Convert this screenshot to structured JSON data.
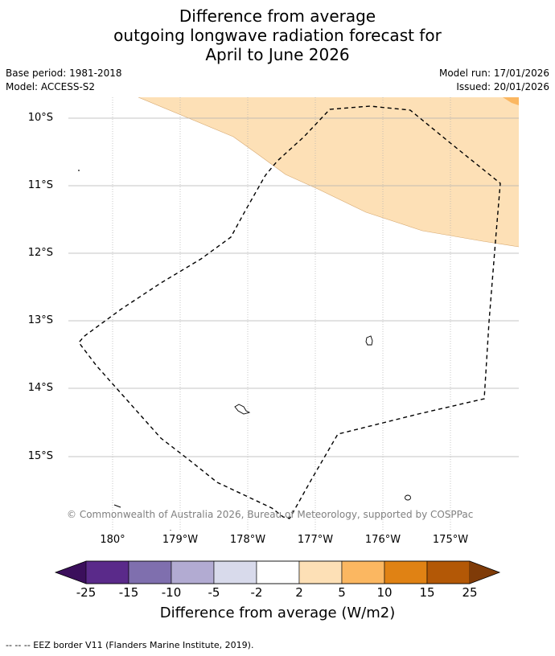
{
  "title": {
    "line1": "Difference from average",
    "line2": "outgoing longwave radiation forecast for",
    "line3": "April to June 2026"
  },
  "meta": {
    "base_period": "Base period: 1981-2018",
    "model": "Model: ACCESS-S2",
    "model_run": "Model run: 17/01/2026",
    "issued": "Issued: 20/01/2026"
  },
  "map": {
    "lat_labels": [
      "10°S",
      "11°S",
      "12°S",
      "13°S",
      "14°S",
      "15°S"
    ],
    "lon_labels": [
      "180°",
      "179°W",
      "178°W",
      "177°W",
      "176°W",
      "175°W"
    ],
    "copyright": "© Commonwealth of Australia 2026, Bureau of Meteorology, supported by COSPPac",
    "colors": {
      "shade_2_5": "#fde0b6",
      "shade_5_10": "#fbb761",
      "eez_line": "#000000",
      "grid": "#b0b0b0"
    }
  },
  "colorbar": {
    "title": "Difference from average (W/m2)",
    "labels": [
      "-25",
      "-15",
      "-10",
      "-5",
      "-2",
      "2",
      "5",
      "10",
      "15",
      "25"
    ],
    "colors": [
      "#3b0f5c",
      "#5a2a8a",
      "#7f6fae",
      "#b2abd2",
      "#d8daeb",
      "#ffffff",
      "#fde0b6",
      "#fbb761",
      "#e08214",
      "#b35806",
      "#7f3b08"
    ]
  },
  "footer": {
    "eez_legend": "--  --  -- EEZ border V11 (Flanders Marine Institute, 2019)."
  }
}
